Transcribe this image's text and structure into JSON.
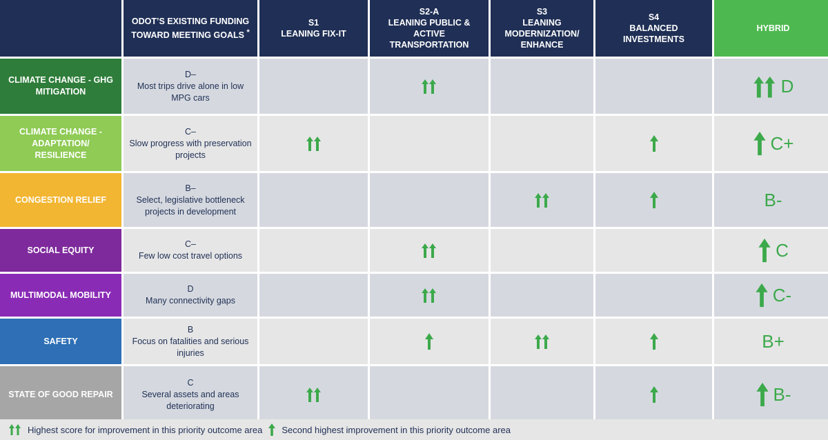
{
  "columns": {
    "goals": "",
    "funding": "ODOT’S EXISTING FUNDING TOWARD MEETING GOALS",
    "funding_note": "*",
    "s1_id": "S1",
    "s1_name": "LEANING FIX-IT",
    "s2a_id": "S2-A",
    "s2a_name": "LEANING PUBLIC & ACTIVE TRANSPORTATION",
    "s3_id": "S3",
    "s3_name": "LEANING MODERNIZATION/ ENHANCE",
    "s4_id": "S4",
    "s4_name": "BALANCED INVESTMENTS",
    "hybrid": "HYBRID"
  },
  "rows": [
    {
      "label": "CLIMATE  CHANGE  - GHG MITIGATION",
      "color": "#2e7d3a",
      "grade": "D–",
      "desc": "Most trips drive alone in low MPG cars",
      "s1": "",
      "s2a": "double-up",
      "s3": "",
      "s4": "",
      "hybrid_arrow": "double-up",
      "hybrid_grade": "D"
    },
    {
      "label": "CLIMATE CHANGE  - ADAPTATION/ RESILIENCE",
      "color": "#8fcb55",
      "grade": "C–",
      "desc": "Slow progress with preservation projects",
      "s1": "double-up",
      "s2a": "",
      "s3": "",
      "s4": "single-up",
      "hybrid_arrow": "single-up",
      "hybrid_grade": "C+"
    },
    {
      "label": "CONGESTION RELIEF",
      "color": "#f2b632",
      "grade": "B–",
      "desc": "Select, legislative bottleneck projects in development",
      "s1": "",
      "s2a": "",
      "s3": "double-up",
      "s4": "single-up",
      "hybrid_arrow": "",
      "hybrid_grade": "B-"
    },
    {
      "label": "SOCIAL EQUITY",
      "color": "#7e2a9c",
      "grade": "C–",
      "desc": "Few low cost travel options",
      "s1": "",
      "s2a": "double-up",
      "s3": "",
      "s4": "",
      "hybrid_arrow": "single-up",
      "hybrid_grade": "C"
    },
    {
      "label": "MULTIMODAL MOBILITY",
      "color": "#8a2bb6",
      "grade": "D",
      "desc": "Many connectivity gaps",
      "s1": "",
      "s2a": "double-up",
      "s3": "",
      "s4": "",
      "hybrid_arrow": "single-up",
      "hybrid_grade": "C-"
    },
    {
      "label": "SAFETY",
      "color": "#2e6fb5",
      "grade": "B",
      "desc": "Focus on fatalities and serious injuries",
      "s1": "",
      "s2a": "single-up",
      "s3": "double-up",
      "s4": "single-up",
      "hybrid_arrow": "",
      "hybrid_grade": "B+"
    },
    {
      "label": "STATE OF GOOD REPAIR",
      "color": "#a6a6a6",
      "grade": "C",
      "desc": "Several assets and areas deteriorating",
      "s1": "double-up",
      "s2a": "",
      "s3": "",
      "s4": "single-up",
      "hybrid_arrow": "single-up",
      "hybrid_grade": "B-"
    }
  ],
  "legend": {
    "double_label": "Highest score for improvement in this priority outcome area",
    "single_label": "Second highest improvement in this priority outcome area"
  },
  "colors": {
    "header": "#1f2f55",
    "hybrid_header": "#4db84f",
    "arrow": "#3ca94b"
  }
}
